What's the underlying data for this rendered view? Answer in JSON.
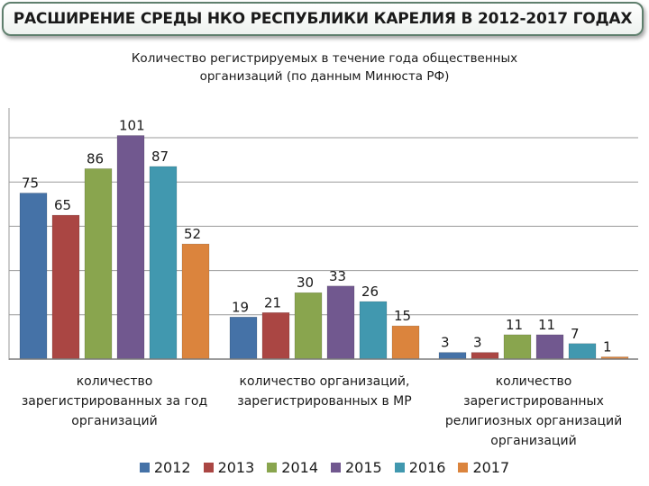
{
  "header": {
    "title": "РАСШИРЕНИЕ СРЕДЫ НКО РЕСПУБЛИКИ КАРЕЛИЯ В 2012-2017 ГОДАХ"
  },
  "chart_data": {
    "type": "bar",
    "title_line1": "Количество  регистрируемых  в течение года общественных",
    "title_line2": "организаций  (по данным Минюста РФ)",
    "ylim": [
      0,
      110
    ],
    "grid": true,
    "legend_position": "bottom",
    "categories": [
      {
        "lines": [
          "количество",
          "зарегистрированных за год",
          "организаций"
        ]
      },
      {
        "lines": [
          "количество организаций,",
          "зарегистрированных в МР"
        ]
      },
      {
        "lines": [
          "количество",
          "зарегистрированных",
          "религиозных организаций",
          "организаций"
        ]
      }
    ],
    "series": [
      {
        "name": "2012",
        "color": "#4572a7",
        "values": [
          75,
          19,
          3
        ]
      },
      {
        "name": "2013",
        "color": "#aa4643",
        "values": [
          65,
          21,
          3
        ]
      },
      {
        "name": "2014",
        "color": "#89a54e",
        "values": [
          86,
          30,
          11
        ]
      },
      {
        "name": "2015",
        "color": "#71588f",
        "values": [
          101,
          33,
          11
        ]
      },
      {
        "name": "2016",
        "color": "#4198af",
        "values": [
          87,
          26,
          7
        ]
      },
      {
        "name": "2017",
        "color": "#db843d",
        "values": [
          52,
          15,
          1
        ]
      }
    ]
  }
}
